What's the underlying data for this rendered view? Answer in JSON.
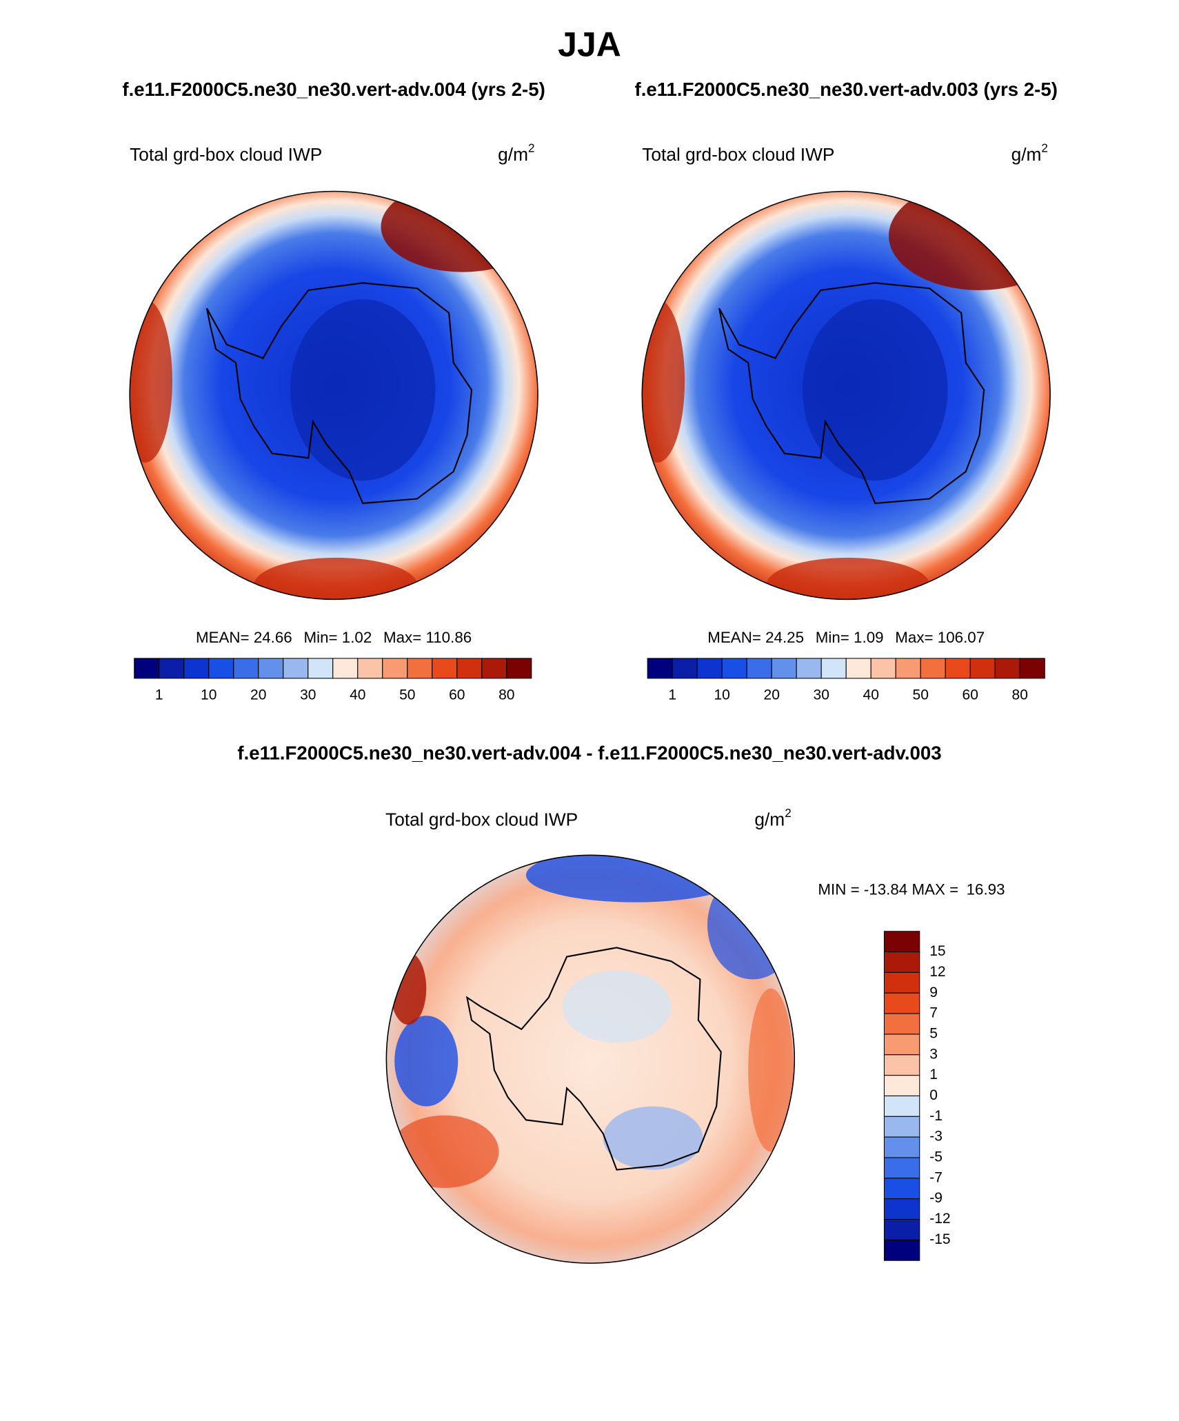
{
  "title": "JJA",
  "panels": [
    {
      "case": "f.e11.F2000C5.ne30_ne30.vert-adv.004 (yrs 2-5)",
      "variable": "Total grd-box cloud IWP",
      "units": "g/m",
      "units_exponent": "2",
      "stats": {
        "mean_label": "MEAN=",
        "mean": 24.66,
        "min_label": "Min=",
        "min": 1.02,
        "max_label": "Max=",
        "max": 110.86
      },
      "colorbar_labels": [
        1,
        10,
        20,
        30,
        40,
        50,
        60,
        80
      ]
    },
    {
      "case": "f.e11.F2000C5.ne30_ne30.vert-adv.003 (yrs 2-5)",
      "variable": "Total grd-box cloud IWP",
      "units": "g/m",
      "units_exponent": "2",
      "stats": {
        "mean_label": "MEAN=",
        "mean": 24.25,
        "min_label": "Min=",
        "min": 1.09,
        "max_label": "Max=",
        "max": 106.07
      },
      "colorbar_labels": [
        1,
        10,
        20,
        30,
        40,
        50,
        60,
        80
      ]
    }
  ],
  "difference": {
    "title": "f.e11.F2000C5.ne30_ne30.vert-adv.004 - f.e11.F2000C5.ne30_ne30.vert-adv.003",
    "variable": "Total grd-box cloud IWP",
    "units": "g/m",
    "units_exponent": "2",
    "stats": {
      "min_label": "MIN =",
      "min": -13.84,
      "max_label": "MAX =",
      "max": 16.93
    },
    "colorbar_labels": [
      15,
      12,
      9,
      7,
      5,
      3,
      1,
      0,
      -1,
      -3,
      -5,
      -7,
      -9,
      -12,
      -15
    ]
  },
  "colors": [
    "#00007f",
    "#0a1ea8",
    "#0d34cf",
    "#1a4fe6",
    "#3a6ee9",
    "#6390ea",
    "#9ab8f0",
    "#d2e4f8",
    "#fde8da",
    "#fbc4a8",
    "#f89a72",
    "#f2703f",
    "#e84a1c",
    "#d0300e",
    "#aa1a08",
    "#7a0202"
  ]
}
